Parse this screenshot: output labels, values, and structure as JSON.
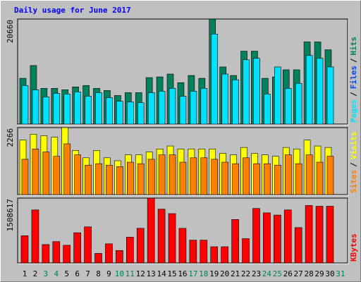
{
  "chart_data": {
    "type": "bar",
    "title": "Daily usage for June 2017",
    "categories": [
      "1",
      "2",
      "3",
      "4",
      "5",
      "6",
      "7",
      "8",
      "9",
      "10",
      "11",
      "12",
      "13",
      "14",
      "15",
      "16",
      "17",
      "18",
      "19",
      "20",
      "21",
      "22",
      "23",
      "24",
      "25",
      "26",
      "27",
      "28",
      "29",
      "30",
      "31"
    ],
    "category_colors": [
      "#000000",
      "#000000",
      "#00805c",
      "#00805c",
      "#000000",
      "#000000",
      "#000000",
      "#000000",
      "#000000",
      "#00805c",
      "#00805c",
      "#000000",
      "#000000",
      "#000000",
      "#000000",
      "#000000",
      "#00805c",
      "#00805c",
      "#000000",
      "#000000",
      "#000000",
      "#000000",
      "#000000",
      "#00805c",
      "#00805c",
      "#000000",
      "#000000",
      "#000000",
      "#000000",
      "#000000",
      "#00805c"
    ],
    "panels": [
      {
        "ylim": [
          0,
          20660
        ],
        "yticks": [
          20660
        ],
        "legend_separator": "/",
        "series": [
          {
            "name": "Pages",
            "color": "#00e0ff",
            "values": [
              7590,
              6750,
              5340,
              6040,
              5900,
              6320,
              5480,
              6180,
              5200,
              4500,
              4360,
              4220,
              6180,
              6460,
              7030,
              5480,
              6460,
              7030,
              17710,
              9840,
              8710,
              12650,
              12930,
              5900,
              11240,
              7030,
              8010,
              13490,
              12930,
              11240,
              null
            ]
          },
          {
            "name": "Files",
            "color": "#0040ff",
            "values": [
              2300,
              2900,
              1900,
              2100,
              2000,
              2200,
              1800,
              2100,
              1700,
              1500,
              1600,
              1500,
              2300,
              2400,
              2600,
              1900,
              2500,
              2600,
              6000,
              3300,
              3000,
              3900,
              3800,
              2000,
              3500,
              2400,
              2700,
              3900,
              3700,
              3300,
              null
            ]
          },
          {
            "name": "Hits",
            "color": "#00805c",
            "values": [
              9000,
              11520,
              7030,
              7030,
              6750,
              7310,
              7590,
              7030,
              6600,
              5620,
              6180,
              6180,
              9140,
              9280,
              9840,
              8150,
              9560,
              9000,
              20660,
              11240,
              9560,
              14340,
              14340,
              9000,
              9280,
              10680,
              10680,
              16160,
              16160,
              14620,
              null
            ]
          }
        ]
      },
      {
        "ylim": [
          0,
          2266
        ],
        "yticks": [
          2266
        ],
        "legend_separator": "/",
        "series": [
          {
            "name": "Sites",
            "color": "#ff8000",
            "values": [
              1195,
              1544,
              1444,
              1295,
              1718,
              1345,
              996,
              1046,
              996,
              946,
              1096,
              1046,
              1195,
              1345,
              1345,
              1096,
              1245,
              1245,
              1195,
              1096,
              1046,
              1245,
              1046,
              1046,
              996,
              1345,
              1046,
              1345,
              1096,
              1295,
              null
            ]
          },
          {
            "name": "Visits",
            "color": "#ffff00",
            "values": [
              1843,
              2042,
              1992,
              1943,
              2266,
              1494,
              1245,
              1494,
              1245,
              1146,
              1345,
              1345,
              1444,
              1544,
              1644,
              1544,
              1544,
              1544,
              1544,
              1395,
              1345,
              1594,
              1395,
              1345,
              1295,
              1594,
              1544,
              1843,
              1644,
              1594,
              null
            ]
          }
        ]
      },
      {
        "ylim": [
          0,
          1508617
        ],
        "yticks": [
          1508617
        ],
        "legend_separator": "/",
        "series": [
          {
            "name": "KBytes",
            "color": "#ff0000",
            "values": [
              634300,
              1234000,
              428000,
              497000,
              411000,
              703000,
              840000,
              223000,
              446000,
              291000,
              600000,
              806000,
              1508617,
              1251000,
              1148000,
              806000,
              531000,
              531000,
              377000,
              377000,
              1011000,
              566000,
              1268000,
              1166000,
              1114000,
              1234000,
              823000,
              1337000,
              1320000,
              1320000,
              null
            ]
          }
        ]
      }
    ]
  }
}
